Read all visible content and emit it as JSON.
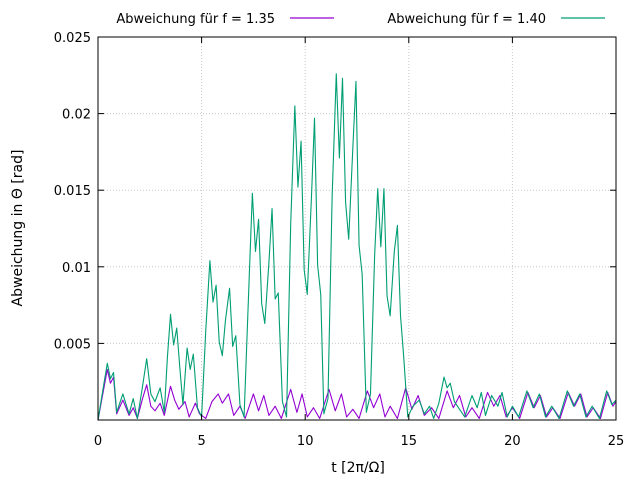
{
  "chart_data": {
    "type": "line",
    "xlabel": "t [2π/Ω]",
    "ylabel": "Abweichung in Θ [rad]",
    "xlim": [
      0,
      25
    ],
    "ylim": [
      0,
      0.025
    ],
    "x_ticks": [
      0,
      5,
      10,
      15,
      20,
      25
    ],
    "y_ticks": [
      0.005,
      0.01,
      0.015,
      0.02,
      0.025
    ],
    "y_tick_labels": [
      "0.005",
      "0.01",
      "0.015",
      "0.02",
      "0.025"
    ],
    "grid": true,
    "legend_position": "top",
    "series": [
      {
        "name": "Abweichung für f = 1.35",
        "color": "#9400d3",
        "style": "oscillating peaks",
        "points": [
          [
            0.0,
            0.0
          ],
          [
            0.3,
            0.0022
          ],
          [
            0.45,
            0.0033
          ],
          [
            0.6,
            0.0024
          ],
          [
            0.75,
            0.0028
          ],
          [
            0.9,
            0.0004
          ],
          [
            1.2,
            0.0013
          ],
          [
            1.5,
            0.0003
          ],
          [
            1.7,
            0.0008
          ],
          [
            1.9,
            0.0001
          ],
          [
            2.15,
            0.0014
          ],
          [
            2.35,
            0.0023
          ],
          [
            2.55,
            0.0009
          ],
          [
            2.75,
            0.0006
          ],
          [
            3.0,
            0.0011
          ],
          [
            3.2,
            0.0003
          ],
          [
            3.5,
            0.0022
          ],
          [
            3.7,
            0.0013
          ],
          [
            3.9,
            0.0007
          ],
          [
            4.2,
            0.0012
          ],
          [
            4.4,
            0.0002
          ],
          [
            4.7,
            0.0011
          ],
          [
            4.9,
            0.0004
          ],
          [
            5.2,
            0.0001
          ],
          [
            5.5,
            0.0012
          ],
          [
            5.8,
            0.0017
          ],
          [
            6.0,
            0.0011
          ],
          [
            6.3,
            0.0017
          ],
          [
            6.55,
            0.0003
          ],
          [
            6.85,
            0.0009
          ],
          [
            7.1,
            0.0001
          ],
          [
            7.5,
            0.0017
          ],
          [
            7.75,
            0.0006
          ],
          [
            8.0,
            0.0016
          ],
          [
            8.25,
            0.0003
          ],
          [
            8.55,
            0.0009
          ],
          [
            8.85,
            0.0001
          ],
          [
            9.3,
            0.002
          ],
          [
            9.6,
            0.0005
          ],
          [
            9.85,
            0.0017
          ],
          [
            10.1,
            0.0002
          ],
          [
            10.4,
            0.0008
          ],
          [
            10.7,
            0.0001
          ],
          [
            11.15,
            0.002
          ],
          [
            11.45,
            0.0006
          ],
          [
            11.75,
            0.0017
          ],
          [
            12.0,
            0.0002
          ],
          [
            12.3,
            0.0007
          ],
          [
            12.6,
            0.0001
          ],
          [
            13.0,
            0.0019
          ],
          [
            13.3,
            0.0008
          ],
          [
            13.6,
            0.0017
          ],
          [
            13.85,
            0.0002
          ],
          [
            14.1,
            0.0009
          ],
          [
            14.45,
            0.0001
          ],
          [
            14.85,
            0.0021
          ],
          [
            15.15,
            0.0007
          ],
          [
            15.45,
            0.0016
          ],
          [
            15.75,
            0.0003
          ],
          [
            16.1,
            0.0008
          ],
          [
            16.45,
            0.0001
          ],
          [
            16.85,
            0.0019
          ],
          [
            17.15,
            0.0008
          ],
          [
            17.45,
            0.0016
          ],
          [
            17.75,
            0.0002
          ],
          [
            18.05,
            0.0008
          ],
          [
            18.4,
            0.0001
          ],
          [
            18.8,
            0.0018
          ],
          [
            19.1,
            0.0009
          ],
          [
            19.4,
            0.0016
          ],
          [
            19.7,
            0.0002
          ],
          [
            20.0,
            0.0008
          ],
          [
            20.35,
            0.0001
          ],
          [
            20.75,
            0.0018
          ],
          [
            21.05,
            0.0008
          ],
          [
            21.35,
            0.0016
          ],
          [
            21.65,
            0.0002
          ],
          [
            21.95,
            0.0008
          ],
          [
            22.3,
            0.0001
          ],
          [
            22.7,
            0.0018
          ],
          [
            23.0,
            0.0009
          ],
          [
            23.3,
            0.0017
          ],
          [
            23.6,
            0.0002
          ],
          [
            23.9,
            0.0008
          ],
          [
            24.25,
            0.0001
          ],
          [
            24.6,
            0.0018
          ],
          [
            24.85,
            0.0009
          ],
          [
            25.0,
            0.0012
          ]
        ]
      },
      {
        "name": "Abweichung für f = 1.40",
        "color": "#009e73",
        "style": "growing then decaying peaks",
        "points": [
          [
            0.0,
            0.0
          ],
          [
            0.3,
            0.0025
          ],
          [
            0.45,
            0.0037
          ],
          [
            0.6,
            0.0027
          ],
          [
            0.75,
            0.0031
          ],
          [
            0.9,
            0.0005
          ],
          [
            1.2,
            0.0017
          ],
          [
            1.5,
            0.0004
          ],
          [
            1.7,
            0.0014
          ],
          [
            1.9,
            0.0001
          ],
          [
            2.15,
            0.0022
          ],
          [
            2.35,
            0.004
          ],
          [
            2.55,
            0.0017
          ],
          [
            2.75,
            0.0012
          ],
          [
            3.0,
            0.0021
          ],
          [
            3.2,
            0.0005
          ],
          [
            3.35,
            0.0041
          ],
          [
            3.5,
            0.0069
          ],
          [
            3.65,
            0.0049
          ],
          [
            3.8,
            0.006
          ],
          [
            3.95,
            0.0034
          ],
          [
            4.1,
            0.001
          ],
          [
            4.3,
            0.0047
          ],
          [
            4.45,
            0.0033
          ],
          [
            4.6,
            0.0043
          ],
          [
            4.8,
            0.0008
          ],
          [
            5.0,
            0.0002
          ],
          [
            5.2,
            0.0058
          ],
          [
            5.4,
            0.0104
          ],
          [
            5.55,
            0.0077
          ],
          [
            5.7,
            0.0088
          ],
          [
            5.85,
            0.0051
          ],
          [
            6.0,
            0.0042
          ],
          [
            6.15,
            0.0065
          ],
          [
            6.35,
            0.0086
          ],
          [
            6.5,
            0.0048
          ],
          [
            6.65,
            0.0055
          ],
          [
            6.85,
            0.001
          ],
          [
            7.05,
            0.0002
          ],
          [
            7.3,
            0.0094
          ],
          [
            7.45,
            0.0148
          ],
          [
            7.6,
            0.011
          ],
          [
            7.75,
            0.0131
          ],
          [
            7.9,
            0.0076
          ],
          [
            8.05,
            0.0063
          ],
          [
            8.25,
            0.0103
          ],
          [
            8.4,
            0.0138
          ],
          [
            8.55,
            0.0079
          ],
          [
            8.7,
            0.0083
          ],
          [
            8.9,
            0.0012
          ],
          [
            9.1,
            0.0002
          ],
          [
            9.3,
            0.0128
          ],
          [
            9.5,
            0.0205
          ],
          [
            9.65,
            0.0152
          ],
          [
            9.8,
            0.0182
          ],
          [
            9.95,
            0.0098
          ],
          [
            10.1,
            0.0082
          ],
          [
            10.3,
            0.0145
          ],
          [
            10.45,
            0.0197
          ],
          [
            10.6,
            0.0101
          ],
          [
            10.75,
            0.0082
          ],
          [
            10.9,
            0.0004
          ],
          [
            11.1,
            0.0014
          ],
          [
            11.3,
            0.0146
          ],
          [
            11.5,
            0.0226
          ],
          [
            11.65,
            0.0171
          ],
          [
            11.8,
            0.0223
          ],
          [
            11.95,
            0.0142
          ],
          [
            12.1,
            0.0118
          ],
          [
            12.3,
            0.0178
          ],
          [
            12.45,
            0.0221
          ],
          [
            12.6,
            0.0114
          ],
          [
            12.75,
            0.0095
          ],
          [
            12.95,
            0.0005
          ],
          [
            13.15,
            0.0017
          ],
          [
            13.35,
            0.0107
          ],
          [
            13.5,
            0.0151
          ],
          [
            13.65,
            0.0113
          ],
          [
            13.8,
            0.0151
          ],
          [
            13.95,
            0.0081
          ],
          [
            14.1,
            0.0068
          ],
          [
            14.3,
            0.011
          ],
          [
            14.45,
            0.0127
          ],
          [
            14.6,
            0.0068
          ],
          [
            14.75,
            0.0042
          ],
          [
            14.95,
            0.0002
          ],
          [
            15.2,
            0.0009
          ],
          [
            15.5,
            0.0013
          ],
          [
            15.75,
            0.0004
          ],
          [
            16.0,
            0.0009
          ],
          [
            16.2,
            0.0001
          ],
          [
            16.45,
            0.0011
          ],
          [
            16.7,
            0.0028
          ],
          [
            16.85,
            0.0021
          ],
          [
            17.0,
            0.0024
          ],
          [
            17.2,
            0.0012
          ],
          [
            17.45,
            0.0007
          ],
          [
            17.7,
            0.0002
          ],
          [
            18.05,
            0.0016
          ],
          [
            18.3,
            0.0008
          ],
          [
            18.5,
            0.0018
          ],
          [
            18.7,
            0.0003
          ],
          [
            19.0,
            0.0016
          ],
          [
            19.3,
            0.0009
          ],
          [
            19.5,
            0.0018
          ],
          [
            19.75,
            0.0002
          ],
          [
            20.0,
            0.0009
          ],
          [
            20.3,
            0.0002
          ],
          [
            20.7,
            0.0019
          ],
          [
            21.0,
            0.0008
          ],
          [
            21.3,
            0.0017
          ],
          [
            21.6,
            0.0002
          ],
          [
            21.9,
            0.0009
          ],
          [
            22.25,
            0.0001
          ],
          [
            22.65,
            0.0019
          ],
          [
            22.95,
            0.0009
          ],
          [
            23.25,
            0.0017
          ],
          [
            23.55,
            0.0002
          ],
          [
            23.85,
            0.0009
          ],
          [
            24.2,
            0.0001
          ],
          [
            24.55,
            0.0019
          ],
          [
            24.8,
            0.001
          ],
          [
            25.0,
            0.0013
          ]
        ]
      }
    ]
  }
}
